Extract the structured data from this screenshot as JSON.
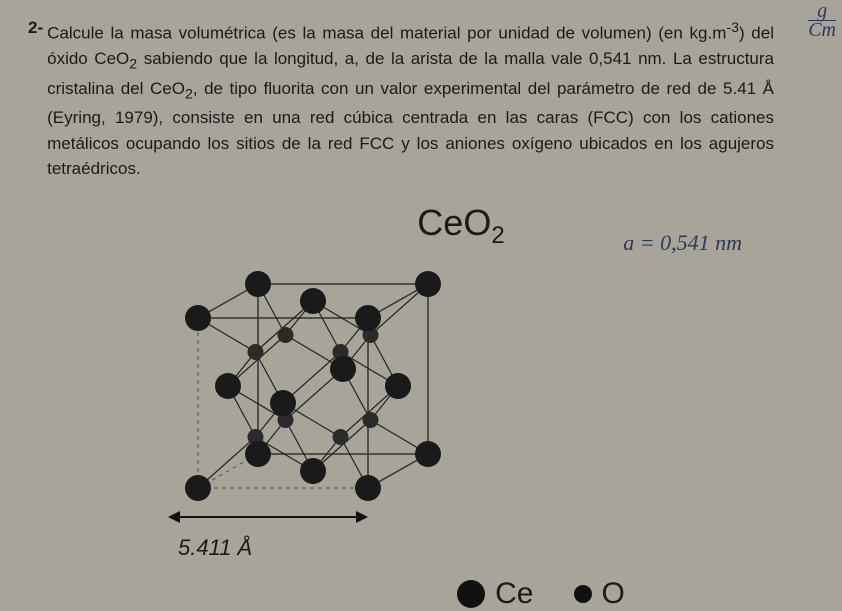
{
  "question": {
    "number": "2-",
    "text_l1": "Calcule la masa volumétrica (es la masa del material por unidad de volumen) (en kg.m",
    "exp": "-3",
    "text_l1b": ")",
    "text_l2": "del óxido CeO",
    "sub1": "2",
    "text_l2b": " sabiendo que la longitud, a, de la arista de la malla vale 0,541 nm. La estructura cristalina del CeO",
    "sub2": "2",
    "text_l2c": ", de tipo fluorita con un valor experimental del parámetro de red de 5.41 Å (Eyring, 1979), consiste en una red cúbica centrada en las caras (FCC) con los cationes metálicos ocupando los sitios de la red FCC y los aniones oxígeno ubicados en los agujeros tetraédricos."
  },
  "diagram": {
    "title": "CeO",
    "title_sub": "2",
    "lattice_param_label": "5.411 Å",
    "legend_ce": "Ce",
    "legend_o": "O",
    "colors": {
      "atom_ce": "#1a1a1a",
      "atom_o": "#2a2a2a",
      "bond": "#222",
      "cube_edge": "#333",
      "cube_hidden": "#555"
    },
    "ce_radius": 13,
    "o_radius": 8,
    "cube_size": 210
  },
  "handwriting": {
    "top_right_num": "g",
    "top_right_den": "Cm",
    "mid_right": "a = 0,541 nm"
  }
}
